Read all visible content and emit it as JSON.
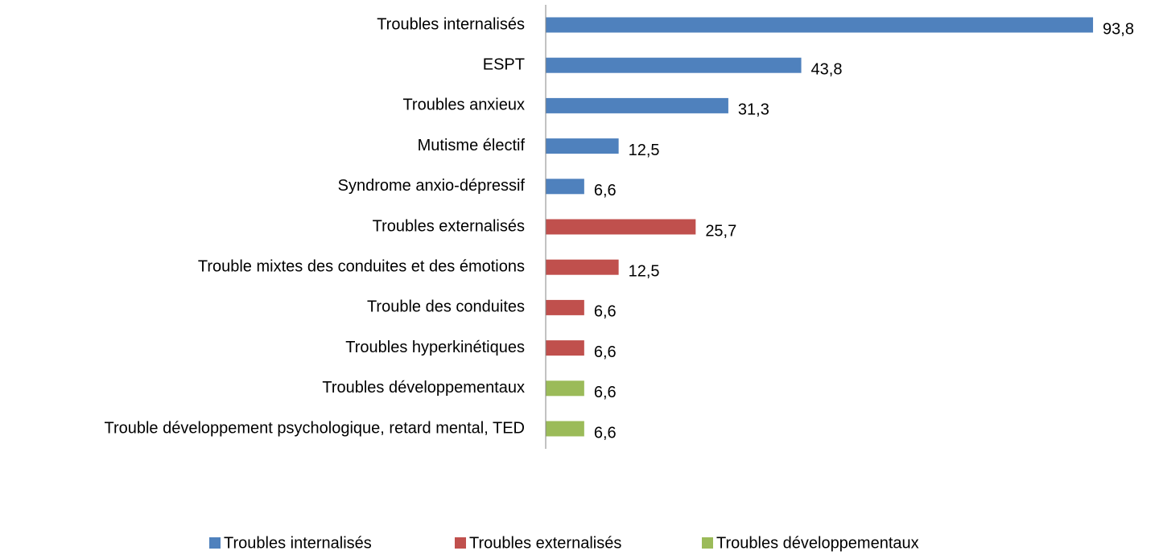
{
  "chart_data": {
    "type": "bar",
    "orientation": "horizontal",
    "categories": [
      "Troubles internalisés",
      "ESPT",
      "Troubles anxieux",
      "Mutisme électif",
      "Syndrome anxio-dépressif",
      "Troubles externalisés",
      "Trouble mixtes des conduites et des émotions",
      "Trouble des conduites",
      "Troubles hyperkinétiques",
      "Troubles développementaux",
      "Trouble développement psychologique, retard mental, TED"
    ],
    "series": [
      {
        "name": "Troubles internalisés",
        "color": "#4f81bd",
        "values": [
          93.8,
          43.8,
          31.3,
          12.5,
          6.6,
          null,
          null,
          null,
          null,
          null,
          null
        ],
        "value_labels": [
          "93,8",
          "43,8",
          "31,3",
          "12,5",
          "6,6",
          null,
          null,
          null,
          null,
          null,
          null
        ]
      },
      {
        "name": "Troubles externalisés",
        "color": "#c0504d",
        "values": [
          null,
          null,
          null,
          null,
          null,
          25.7,
          12.5,
          6.6,
          6.6,
          null,
          null
        ],
        "value_labels": [
          null,
          null,
          null,
          null,
          null,
          "25,7",
          "12,5",
          "6,6",
          "6,6",
          null,
          null
        ]
      },
      {
        "name": "Troubles développementaux",
        "color": "#9bbb59",
        "values": [
          null,
          null,
          null,
          null,
          null,
          null,
          null,
          null,
          null,
          6.6,
          6.6
        ],
        "value_labels": [
          null,
          null,
          null,
          null,
          null,
          null,
          null,
          null,
          null,
          "6,6",
          "6,6"
        ]
      }
    ],
    "xlim": [
      0,
      100
    ],
    "legend": "bottom"
  }
}
